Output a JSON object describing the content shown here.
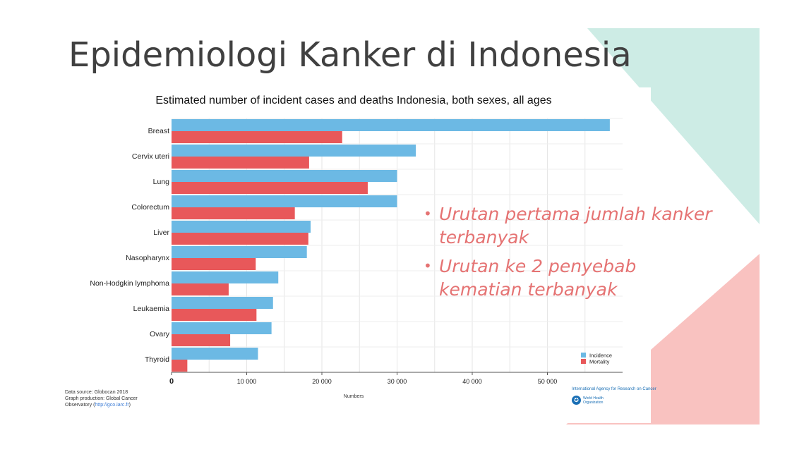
{
  "slide": {
    "title": "Epidemiologi Kanker di Indonesia",
    "bullets": [
      "Urutan pertama jumlah kanker terbanyak",
      "Urutan ke 2 penyebab kematian terbanyak"
    ],
    "bullet_color": "#e57373",
    "deco_colors": {
      "teal": "#cdece5",
      "pink": "#f9c2c0"
    }
  },
  "chart_data": {
    "type": "bar",
    "orientation": "horizontal",
    "title": "Estimated number of incident cases and deaths Indonesia, both sexes, all ages",
    "xlabel": "Numbers",
    "ylabel": "",
    "xlim": [
      0,
      60000
    ],
    "ticks": [
      {
        "value": 0,
        "label": "0"
      },
      {
        "value": 10000,
        "label": "10 000"
      },
      {
        "value": 20000,
        "label": "20 000"
      },
      {
        "value": 30000,
        "label": "30 000"
      },
      {
        "value": 40000,
        "label": "40 000"
      },
      {
        "value": 50000,
        "label": "50 000"
      }
    ],
    "categories": [
      "Breast",
      "Cervix uteri",
      "Lung",
      "Colorectum",
      "Liver",
      "Nasopharynx",
      "Non-Hodgkin lymphoma",
      "Leukaemia",
      "Ovary",
      "Thyroid"
    ],
    "series": [
      {
        "name": "Incidence",
        "color": "#6cb9e4",
        "values": [
          58300,
          32500,
          30000,
          30000,
          18500,
          18000,
          14200,
          13500,
          13300,
          11500
        ]
      },
      {
        "name": "Mortality",
        "color": "#e8585a",
        "values": [
          22700,
          18300,
          26100,
          16400,
          18200,
          11200,
          7600,
          11300,
          7800,
          2100
        ]
      }
    ],
    "grid": true,
    "legend_position": "bottom-right"
  },
  "footer": {
    "source_line1": "Data source: Globocan 2018",
    "source_line2": "Graph production: Global Cancer",
    "source_line3": "Observatory (",
    "source_link": "http://gco.iarc.fr",
    "source_line3_end": ")",
    "iarc": "International Agency for Research on Cancer",
    "who_line1": "World Health",
    "who_line2": "Organization"
  }
}
